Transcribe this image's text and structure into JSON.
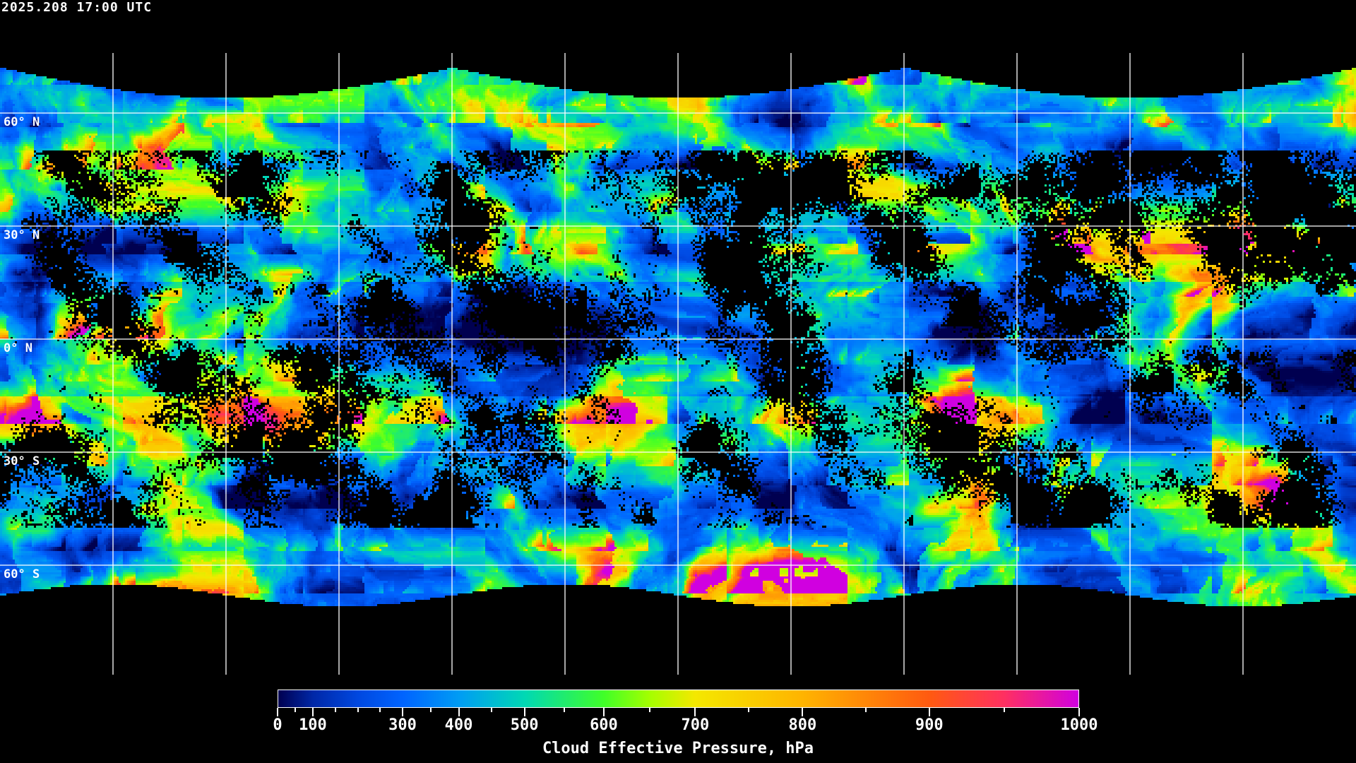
{
  "timestamp": "2025.208 17:00 UTC",
  "map": {
    "projection": "equirectangular",
    "grid_spacing_deg": 30,
    "lat_labels": [
      "60° N",
      "30° N",
      "0° N",
      "30° S",
      "60° S"
    ],
    "lat_values": [
      60,
      30,
      0,
      -30,
      -60
    ],
    "lon_lines": [
      -150,
      -120,
      -90,
      -60,
      -30,
      0,
      30,
      60,
      90,
      120,
      150
    ],
    "grid_color": "#ffffff",
    "clear_sky_color": "#000000"
  },
  "colorbar": {
    "title": "Cloud Effective Pressure, hPa",
    "range": [
      0,
      1000
    ],
    "tick_labels": [
      "0",
      "100",
      "300",
      "400",
      "500",
      "600",
      "700",
      "800",
      "900",
      "1000"
    ],
    "tick_values": [
      0,
      100,
      300,
      400,
      500,
      600,
      700,
      800,
      900,
      1000
    ],
    "minor_tick_values": [
      50,
      150,
      200,
      250,
      350,
      450,
      550,
      650,
      750,
      850,
      950
    ],
    "colormap": [
      {
        "value": 0,
        "color": "#000050"
      },
      {
        "value": 100,
        "color": "#0028a8"
      },
      {
        "value": 200,
        "color": "#0048e0"
      },
      {
        "value": 300,
        "color": "#0064ff"
      },
      {
        "value": 400,
        "color": "#009cf4"
      },
      {
        "value": 500,
        "color": "#00d8b4"
      },
      {
        "value": 600,
        "color": "#40ff28"
      },
      {
        "value": 650,
        "color": "#a4ff00"
      },
      {
        "value": 700,
        "color": "#f4e800"
      },
      {
        "value": 800,
        "color": "#ffb400"
      },
      {
        "value": 900,
        "color": "#ff5a10"
      },
      {
        "value": 950,
        "color": "#ff3060"
      },
      {
        "value": 1000,
        "color": "#d000e0"
      }
    ]
  }
}
